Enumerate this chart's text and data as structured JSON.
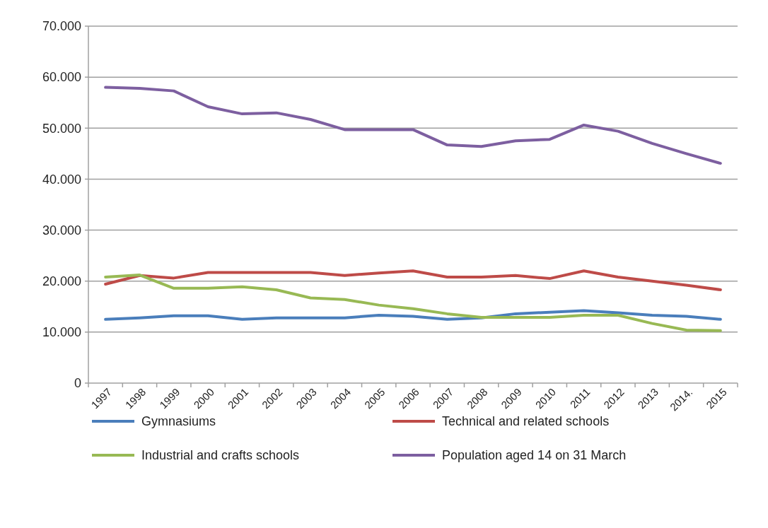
{
  "chart_data": {
    "type": "line",
    "categories": [
      "1997",
      "1998",
      "1999",
      "2000",
      "2001",
      "2002",
      "2003",
      "2004",
      "2005",
      "2006",
      "2007",
      "2008",
      "2009",
      "2010",
      "2011",
      "2012",
      "2013",
      "2014.",
      "2015"
    ],
    "series": [
      {
        "name": "Gymnasiums",
        "color": "#4a7ebb",
        "values": [
          12500,
          12800,
          13200,
          13200,
          12500,
          12800,
          12800,
          12800,
          13300,
          13100,
          12500,
          12800,
          13600,
          13900,
          14200,
          13800,
          13300,
          13100,
          12500
        ]
      },
      {
        "name": "Technical and related schools",
        "color": "#be4b48",
        "values": [
          19400,
          21100,
          20600,
          21700,
          21700,
          21700,
          21700,
          21100,
          21600,
          22000,
          20800,
          20800,
          21100,
          20500,
          22000,
          20800,
          20000,
          19200,
          18300
        ]
      },
      {
        "name": "Industrial and crafts schools",
        "color": "#98b954",
        "values": [
          20800,
          21200,
          18600,
          18600,
          18900,
          18300,
          16700,
          16400,
          15300,
          14600,
          13600,
          12900,
          12900,
          12900,
          13300,
          13300,
          11700,
          10400,
          10300
        ]
      },
      {
        "name": "Population aged 14 on 31 March",
        "color": "#7d5fa0",
        "values": [
          58000,
          57800,
          57300,
          54200,
          52800,
          53000,
          51700,
          49700,
          49700,
          49700,
          46700,
          46400,
          47500,
          47800,
          50600,
          49400,
          47000,
          45000,
          43100
        ]
      }
    ],
    "ylim": [
      0,
      70000
    ],
    "yticks": [
      {
        "value": 0,
        "label": "0"
      },
      {
        "value": 10000,
        "label": "10.000"
      },
      {
        "value": 20000,
        "label": "20.000"
      },
      {
        "value": 30000,
        "label": "30.000"
      },
      {
        "value": 40000,
        "label": "40.000"
      },
      {
        "value": 50000,
        "label": "50.000"
      },
      {
        "value": 60000,
        "label": "60.000"
      },
      {
        "value": 70000,
        "label": "70.000"
      }
    ],
    "grid": "y",
    "legend": "bottom",
    "marker": "none",
    "line_style": "solid"
  }
}
